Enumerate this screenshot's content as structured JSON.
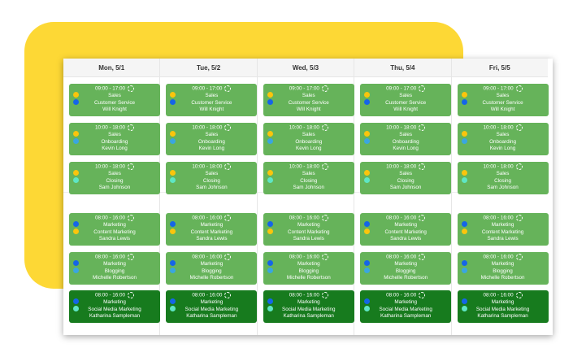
{
  "days": [
    "Mon, 5/1",
    "Tue, 5/2",
    "Wed, 5/3",
    "Thu, 5/4",
    "Fri, 5/5"
  ],
  "shifts": [
    {
      "time": "09:00 - 17:00",
      "dept": "Sales",
      "role": "Customer Service",
      "person": "Will Knight",
      "c1": "#fbc50c",
      "c2": "#1565e8",
      "dark": false
    },
    {
      "time": "10:00 - 18:00",
      "dept": "Sales",
      "role": "Onboarding",
      "person": "Kevin Long",
      "c1": "#fbc50c",
      "c2": "#3aa6e0",
      "dark": false
    },
    {
      "time": "10:00 - 18:00",
      "dept": "Sales",
      "role": "Closing",
      "person": "Sam Johnson",
      "c1": "#fbc50c",
      "c2": "#5ee6c4",
      "dark": false
    },
    {
      "time": "08:00 - 16:00",
      "dept": "Marketing",
      "role": "Content Marketing",
      "person": "Sandra Lewis",
      "c1": "#1565e8",
      "c2": "#fbc50c",
      "dark": false
    },
    {
      "time": "08:00 - 16:00",
      "dept": "Marketing",
      "role": "Blogging",
      "person": "Michelle Robertson",
      "c1": "#1565e8",
      "c2": "#3aa6e0",
      "dark": false
    },
    {
      "time": "08:00 - 16:00",
      "dept": "Marketing",
      "role": "Social Media Marketing",
      "person": "Katharina Sampleman",
      "c1": "#1565e8",
      "c2": "#5ee6c4",
      "dark": true
    }
  ],
  "colors": {
    "accent": "#fdd835",
    "shift": "#66b35a",
    "shift_dark": "#177b1e"
  }
}
